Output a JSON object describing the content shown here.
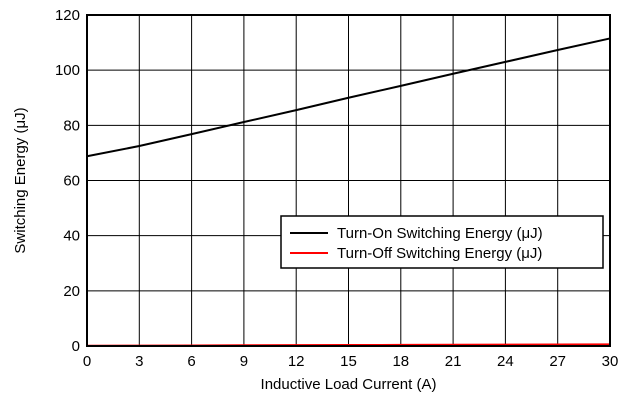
{
  "chart_data": {
    "type": "line",
    "title": "",
    "xlabel": "Inductive Load Current (A)",
    "ylabel": "Switching Energy (μJ)",
    "xlim": [
      0,
      30
    ],
    "ylim": [
      0,
      120
    ],
    "x_ticks": [
      "0",
      "3",
      "6",
      "9",
      "12",
      "15",
      "18",
      "21",
      "24",
      "27",
      "30"
    ],
    "y_ticks": [
      "0",
      "20",
      "40",
      "60",
      "80",
      "100",
      "120"
    ],
    "grid": true,
    "legend_position": "right",
    "series": [
      {
        "name": "Turn-On Switching Energy (μJ)",
        "color": "#000000",
        "x": [
          0,
          3,
          6,
          9,
          12,
          15,
          18,
          21,
          24,
          27,
          30
        ],
        "y": [
          68.8,
          72.5,
          76.8,
          81.2,
          85.5,
          90.0,
          94.3,
          98.7,
          103.0,
          107.3,
          111.5
        ]
      },
      {
        "name": "Turn-Off Switching Energy (μJ)",
        "color": "#ff0000",
        "x": [
          0,
          3,
          6,
          9,
          12,
          15,
          18,
          21,
          24,
          27,
          30
        ],
        "y": [
          0.1,
          0.15,
          0.2,
          0.25,
          0.3,
          0.35,
          0.4,
          0.45,
          0.5,
          0.55,
          0.6
        ]
      }
    ]
  }
}
